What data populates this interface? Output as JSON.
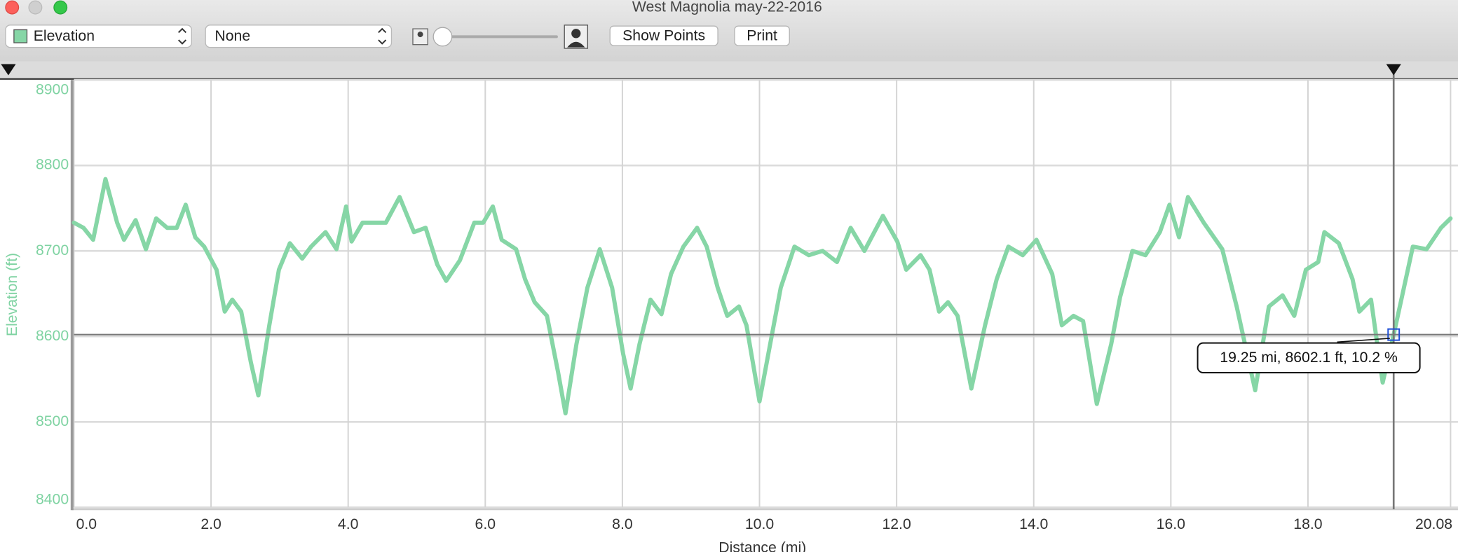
{
  "window": {
    "title": "West Magnolia may-22-2016"
  },
  "toolbar": {
    "metric": "Elevation",
    "overlay": "None",
    "show_points": "Show Points",
    "print": "Print"
  },
  "chart_data": {
    "type": "line",
    "xlabel": "Distance (mi)",
    "ylabel": "Elevation (ft)",
    "x": [
      0,
      0.14,
      0.28,
      0.46,
      0.63,
      0.73,
      0.9,
      1.05,
      1.2,
      1.36,
      1.5,
      1.63,
      1.77,
      1.9,
      2.08,
      2.2,
      2.31,
      2.44,
      2.58,
      2.69,
      2.85,
      2.99,
      3.15,
      3.33,
      3.46,
      3.67,
      3.83,
      3.97,
      4.05,
      4.21,
      4.35,
      4.55,
      4.75,
      4.96,
      5.13,
      5.3,
      5.43,
      5.63,
      5.84,
      5.97,
      6.11,
      6.24,
      6.45,
      6.58,
      6.72,
      6.9,
      7.06,
      7.17,
      7.33,
      7.49,
      7.67,
      7.85,
      8.01,
      8.12,
      8.25,
      8.41,
      8.57,
      8.71,
      8.89,
      9.09,
      9.23,
      9.39,
      9.53,
      9.7,
      9.81,
      10.0,
      10.13,
      10.31,
      10.51,
      10.72,
      10.92,
      11.13,
      11.33,
      11.53,
      11.8,
      12.01,
      12.14,
      12.35,
      12.48,
      12.62,
      12.75,
      12.89,
      13.09,
      13.29,
      13.46,
      13.63,
      13.84,
      14.04,
      14.27,
      14.41,
      14.58,
      14.72,
      14.92,
      15.13,
      15.26,
      15.44,
      15.63,
      15.84,
      15.98,
      16.12,
      16.25,
      16.48,
      16.75,
      16.96,
      17.23,
      17.43,
      17.63,
      17.8,
      17.97,
      18.15,
      18.24,
      18.45,
      18.65,
      18.75,
      18.92,
      19.09,
      19.25,
      19.37,
      19.53,
      19.73,
      19.94,
      20.08
    ],
    "series": [
      {
        "name": "Elevation",
        "color": "#86d6a6",
        "values": [
          8733,
          8727,
          8713,
          8784,
          8733,
          8713,
          8736,
          8702,
          8738,
          8727,
          8727,
          8754,
          8716,
          8705,
          8678,
          8629,
          8643,
          8629,
          8570,
          8531,
          8613,
          8678,
          8709,
          8691,
          8705,
          8722,
          8702,
          8752,
          8711,
          8733,
          8733,
          8733,
          8763,
          8722,
          8727,
          8684,
          8665,
          8689,
          8733,
          8733,
          8752,
          8713,
          8702,
          8667,
          8640,
          8624,
          8559,
          8510,
          8591,
          8657,
          8702,
          8657,
          8580,
          8539,
          8591,
          8643,
          8626,
          8673,
          8705,
          8727,
          8705,
          8657,
          8624,
          8635,
          8613,
          8524,
          8580,
          8657,
          8705,
          8695,
          8700,
          8687,
          8727,
          8700,
          8741,
          8711,
          8678,
          8695,
          8678,
          8629,
          8640,
          8624,
          8539,
          8613,
          8667,
          8705,
          8695,
          8713,
          8673,
          8613,
          8624,
          8618,
          8521,
          8591,
          8646,
          8700,
          8695,
          8722,
          8754,
          8716,
          8763,
          8733,
          8702,
          8635,
          8537,
          8635,
          8648,
          8624,
          8678,
          8687,
          8722,
          8709,
          8667,
          8629,
          8643,
          8546,
          8602.1,
          8646,
          8705,
          8702,
          8727,
          8738
        ]
      }
    ],
    "xlim": [
      0,
      20.08
    ],
    "xticks": [
      {
        "value": 0,
        "label": "0.0"
      },
      {
        "value": 2,
        "label": "2.0"
      },
      {
        "value": 4,
        "label": "4.0"
      },
      {
        "value": 6,
        "label": "6.0"
      },
      {
        "value": 8,
        "label": "8.0"
      },
      {
        "value": 10,
        "label": "10.0"
      },
      {
        "value": 12,
        "label": "12.0"
      },
      {
        "value": 14,
        "label": "14.0"
      },
      {
        "value": 16,
        "label": "16.0"
      },
      {
        "value": 18,
        "label": "18.0"
      },
      {
        "value": 20.08,
        "label": "20.08"
      }
    ],
    "ylim": [
      8400,
      8900
    ],
    "yticks": [
      8400,
      8500,
      8600,
      8700,
      8800,
      8900
    ],
    "grid": true,
    "cursor": {
      "x": 19.25,
      "y": 8602.1,
      "label": "19.25 mi, 8602.1 ft, 10.2 %"
    }
  }
}
